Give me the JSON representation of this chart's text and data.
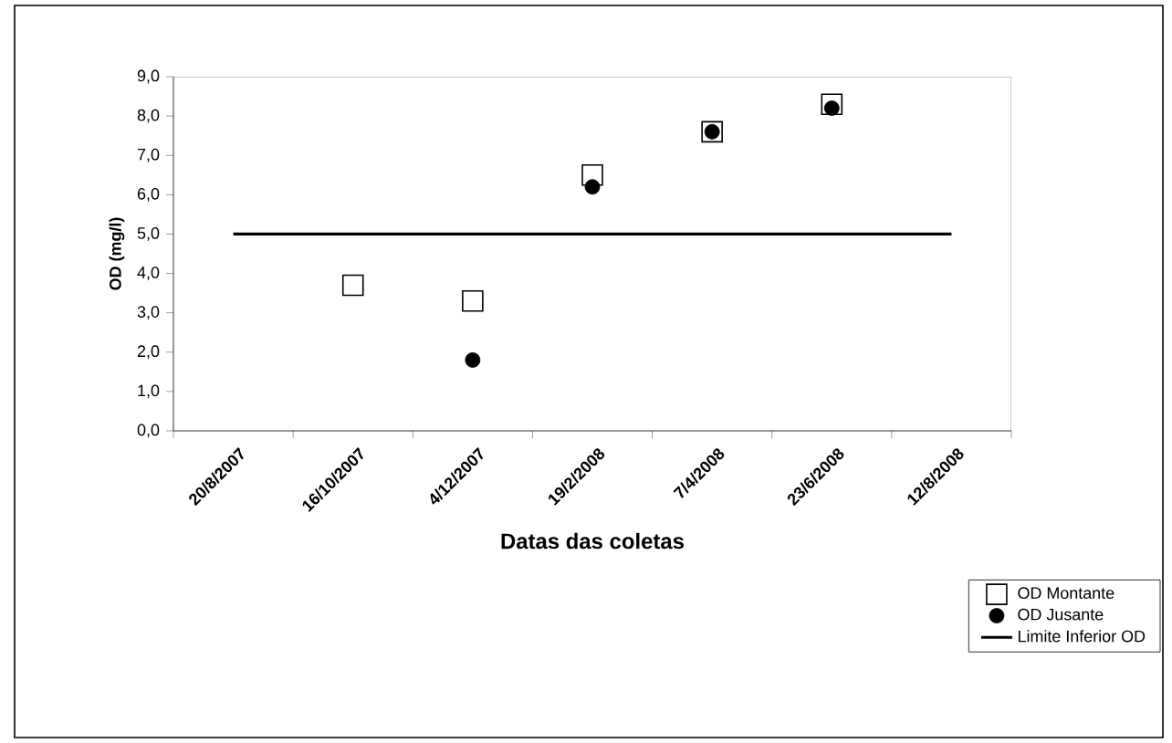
{
  "chart_data": {
    "type": "scatter",
    "xlabel": "Datas das coletas",
    "ylabel": "OD (mg/l)",
    "categories": [
      "20/8/2007",
      "16/10/2007",
      "4/12/2007",
      "19/2/2008",
      "7/4/2008",
      "23/6/2008",
      "12/8/2008"
    ],
    "series": [
      {
        "name": "OD Montante",
        "marker": "square",
        "color": "#000000",
        "values": [
          null,
          3.7,
          3.3,
          6.5,
          7.6,
          8.3,
          null
        ]
      },
      {
        "name": "OD Jusante",
        "marker": "circle",
        "color": "#000000",
        "values": [
          null,
          null,
          1.8,
          6.2,
          7.6,
          8.2,
          null
        ]
      },
      {
        "name": "Limite Inferior OD",
        "type": "line",
        "marker": "none",
        "line_style": "solid",
        "color": "#000000",
        "values": [
          5,
          5,
          5,
          5,
          5,
          5,
          5
        ]
      }
    ],
    "ylim": [
      0,
      9
    ],
    "yticks": [
      {
        "value": 0,
        "label": "0,0"
      },
      {
        "value": 1,
        "label": "1,0"
      },
      {
        "value": 2,
        "label": "2,0"
      },
      {
        "value": 3,
        "label": "3,0"
      },
      {
        "value": 4,
        "label": "4,0"
      },
      {
        "value": 5,
        "label": "5,0"
      },
      {
        "value": 6,
        "label": "6,0"
      },
      {
        "value": 7,
        "label": "7,0"
      },
      {
        "value": 8,
        "label": "8,0"
      },
      {
        "value": 9,
        "label": "9,0"
      }
    ],
    "grid": false,
    "legend": "bottom right"
  }
}
